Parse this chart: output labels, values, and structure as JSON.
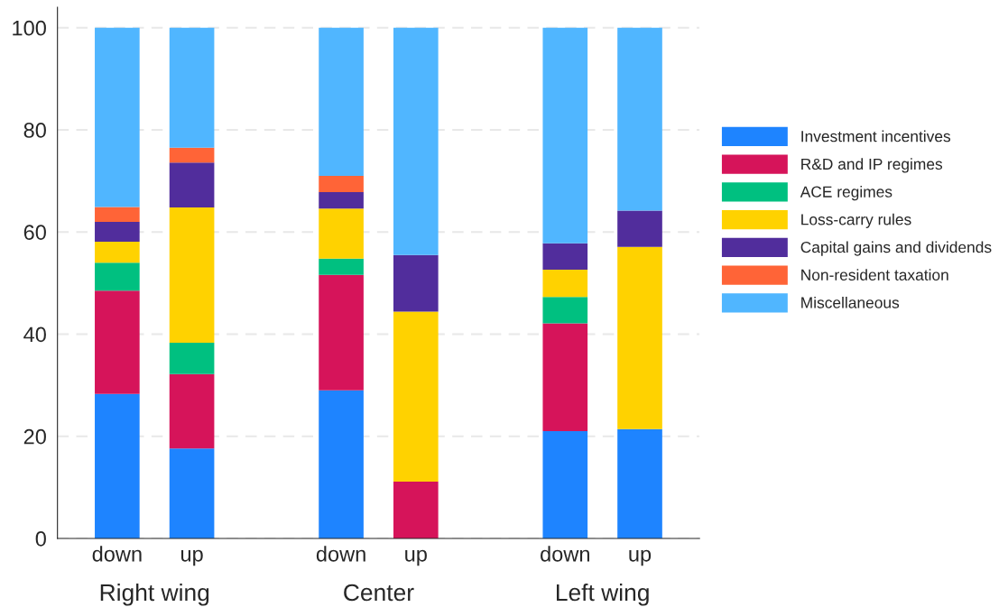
{
  "chart_data": {
    "type": "bar",
    "stacked": true,
    "categories": [
      "down",
      "up",
      null,
      "down",
      "up",
      null,
      "down",
      "up"
    ],
    "series": [
      {
        "name": "Investment incentives",
        "color": "#1e84ff",
        "values": [
          28.3,
          17.6,
          null,
          29.0,
          0,
          null,
          21.0,
          21.4
        ]
      },
      {
        "name": "R&D and IP regimes",
        "color": "#d6145a",
        "values": [
          20.2,
          14.6,
          null,
          22.6,
          11.1,
          null,
          21.1,
          0
        ]
      },
      {
        "name": "ACE regimes",
        "color": "#00c080",
        "values": [
          5.5,
          6.1,
          null,
          3.2,
          0,
          null,
          5.2,
          0
        ]
      },
      {
        "name": "Loss-carry rules",
        "color": "#ffd200",
        "values": [
          4.1,
          26.5,
          null,
          9.8,
          33.3,
          null,
          5.3,
          35.7
        ]
      },
      {
        "name": "Capital gains and dividends",
        "color": "#512d9c",
        "values": [
          3.9,
          8.8,
          null,
          3.2,
          11.1,
          null,
          5.2,
          7.1
        ]
      },
      {
        "name": "Non-resident taxation",
        "color": "#ff6437",
        "values": [
          2.9,
          2.9,
          null,
          3.2,
          0,
          null,
          0,
          0
        ]
      },
      {
        "name": "Miscellaneous",
        "color": "#50b6ff",
        "values": [
          35.1,
          23.5,
          null,
          29.0,
          44.5,
          null,
          42.2,
          35.8
        ]
      }
    ],
    "annotations": [
      "Right wing",
      "Center",
      "Left wing"
    ],
    "ylim": [
      0,
      104
    ],
    "yticks": [
      0,
      20,
      40,
      60,
      80,
      100
    ],
    "grid": "y",
    "legend": "right"
  }
}
